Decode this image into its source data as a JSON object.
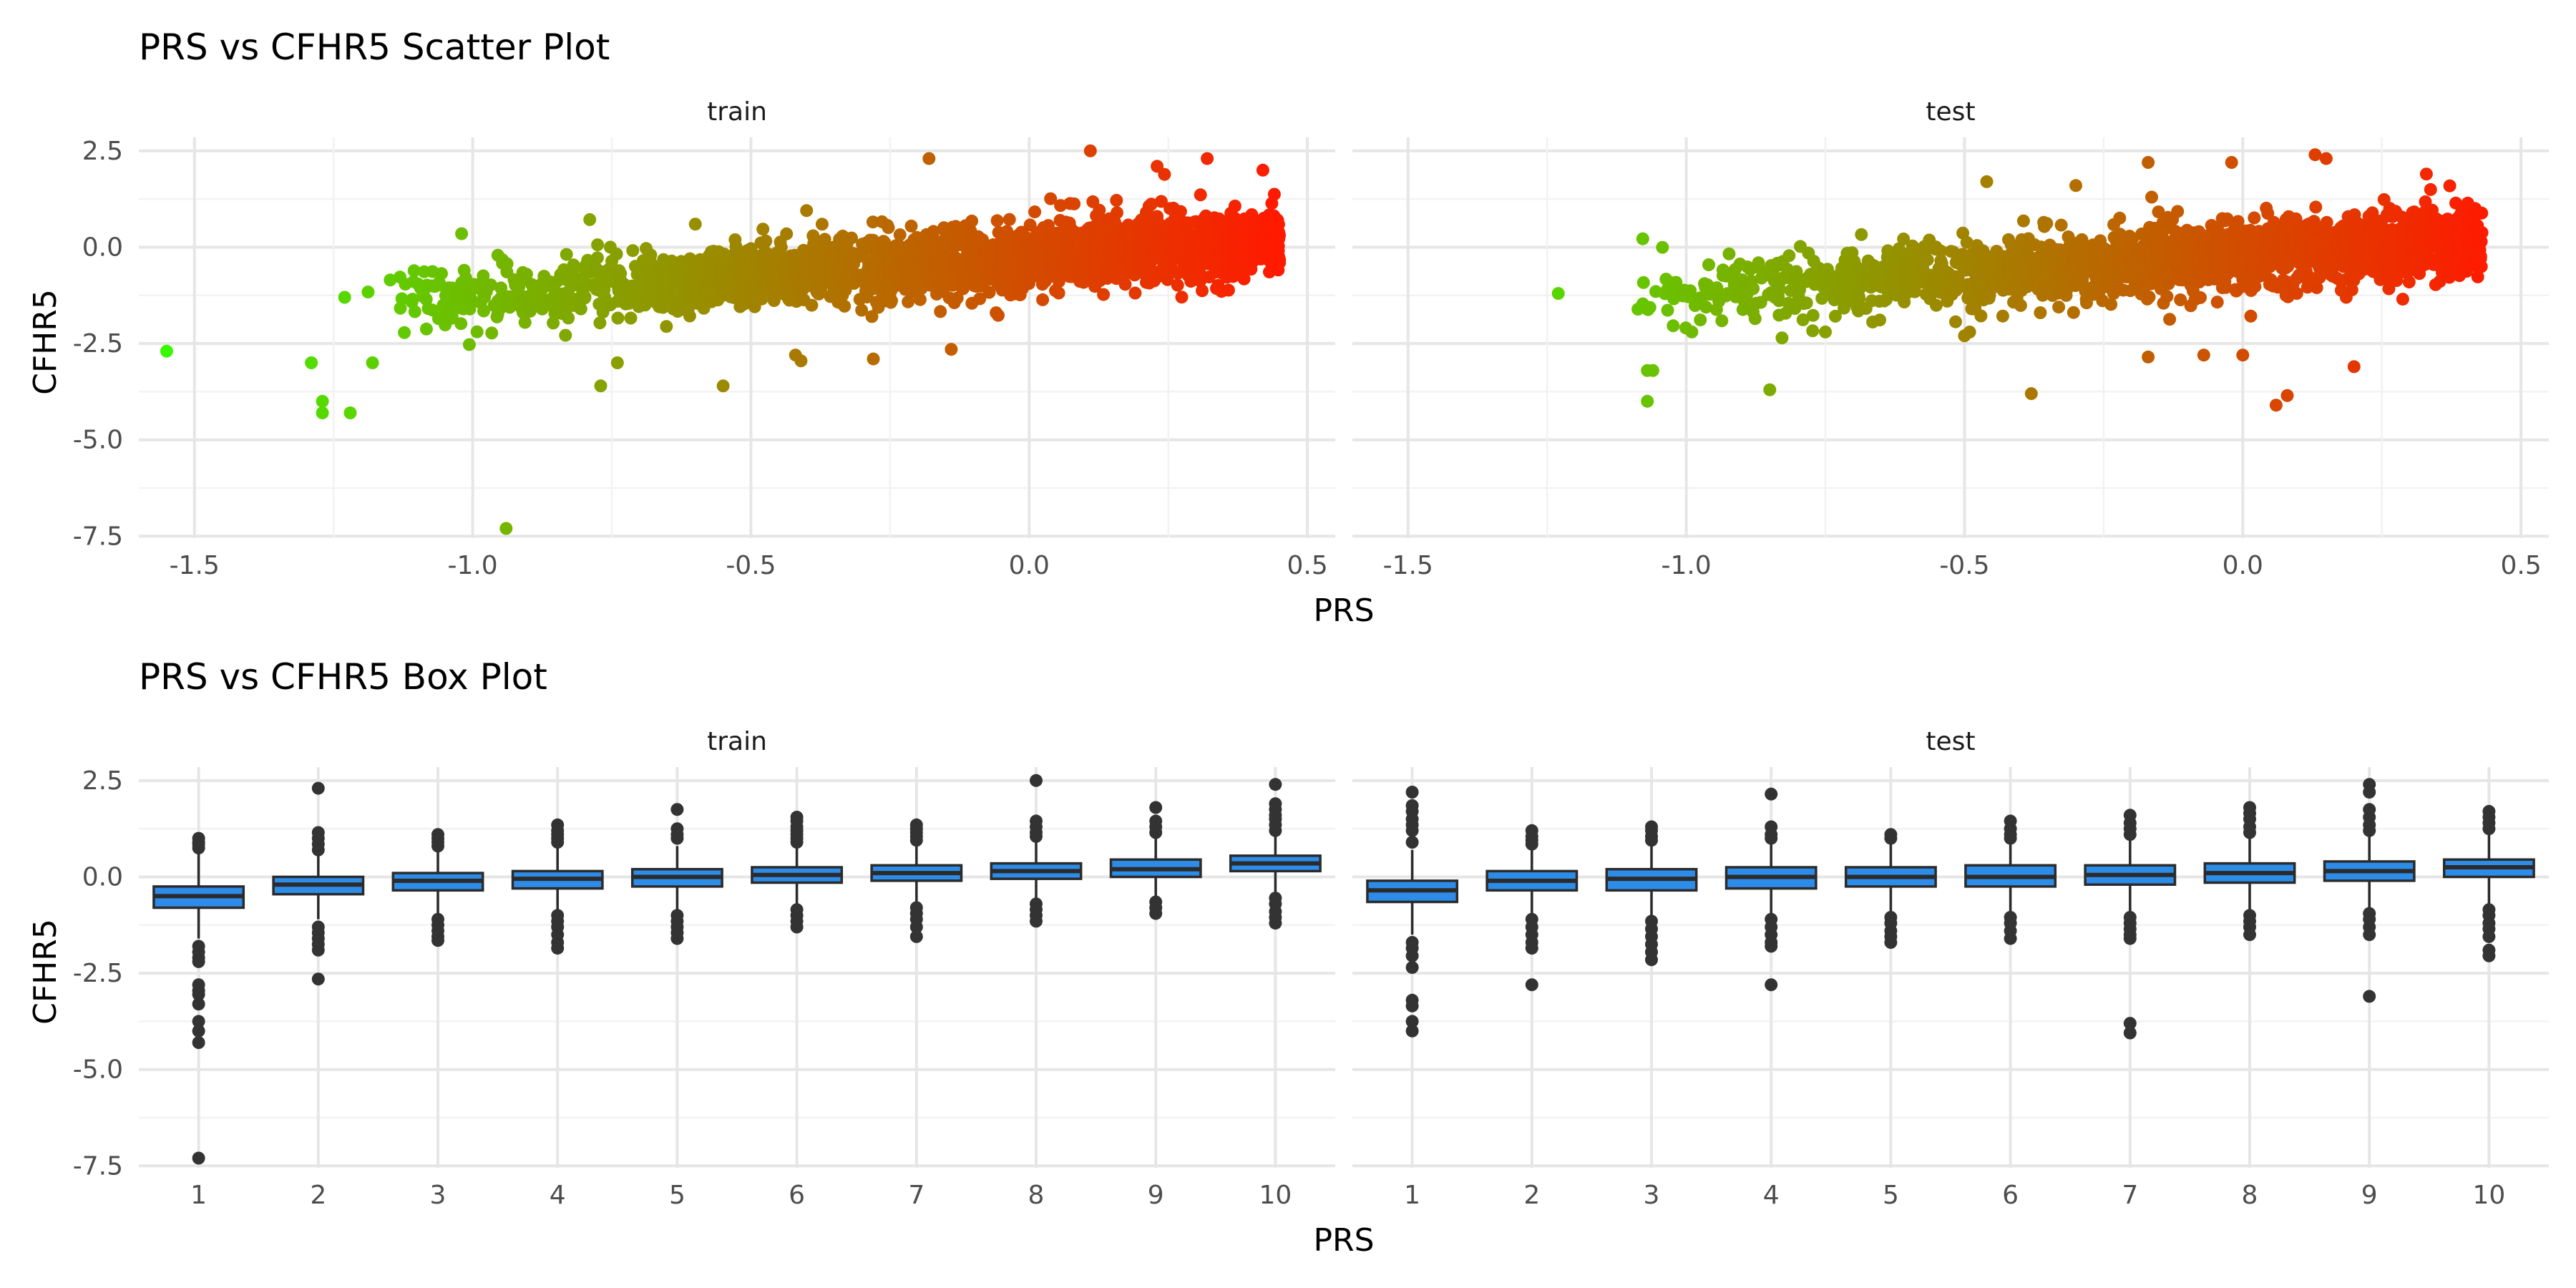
{
  "chart_data": [
    {
      "type": "scatter",
      "title": "PRS vs CFHR5 Scatter Plot",
      "xlabel": "PRS",
      "ylabel": "CFHR5",
      "xlim": [
        -1.6,
        0.55
      ],
      "ylim": [
        -7.55,
        2.85
      ],
      "x_ticks": [
        "-1.5",
        "-1.0",
        "-0.5",
        "0.0",
        "0.5"
      ],
      "y_ticks": [
        "2.5",
        "0.0",
        "-2.5",
        "-5.0",
        "-7.5"
      ],
      "color_scale": {
        "low": "#33ff00",
        "high": "#ff1a00",
        "mapped_to": "PRS"
      },
      "grid": true,
      "legend": "none",
      "panels": [
        {
          "name": "train",
          "trend": {
            "slope": 1.05,
            "intercept": -0.25,
            "x_range": [
              -1.2,
              0.45
            ],
            "noise_sd": 0.42,
            "n_points": 2200,
            "density": "left-skewed, dense between -0.5 and 0.45"
          },
          "outliers": [
            [
              -1.55,
              -2.7
            ],
            [
              -1.27,
              -4.0
            ],
            [
              -1.27,
              -4.3
            ],
            [
              -1.22,
              -4.3
            ],
            [
              -1.29,
              -3.0
            ],
            [
              -1.18,
              -3.0
            ],
            [
              -0.94,
              -7.3
            ],
            [
              -0.77,
              -3.6
            ],
            [
              -0.74,
              -3.0
            ],
            [
              -0.55,
              -3.6
            ],
            [
              -0.42,
              -2.8
            ],
            [
              -0.41,
              -2.95
            ],
            [
              -0.28,
              -2.9
            ],
            [
              -0.14,
              -2.65
            ],
            [
              -1.02,
              0.35
            ],
            [
              -0.4,
              0.95
            ],
            [
              -0.18,
              2.3
            ],
            [
              0.11,
              2.5
            ],
            [
              0.23,
              2.1
            ],
            [
              0.42,
              2.0
            ],
            [
              0.32,
              2.3
            ],
            [
              -0.6,
              0.6
            ],
            [
              -1.23,
              -1.3
            ]
          ]
        },
        {
          "name": "test",
          "trend": {
            "slope": 0.95,
            "intercept": -0.2,
            "x_range": [
              -1.12,
              0.43
            ],
            "noise_sd": 0.45,
            "n_points": 1800,
            "density": "left-skewed, dense between -0.4 and 0.4"
          },
          "outliers": [
            [
              -1.23,
              -1.2
            ],
            [
              -1.07,
              -3.2
            ],
            [
              -1.07,
              -4.0
            ],
            [
              -1.06,
              -3.2
            ],
            [
              -0.85,
              -3.7
            ],
            [
              -0.38,
              -3.8
            ],
            [
              0.06,
              -4.1
            ],
            [
              0.08,
              -3.85
            ],
            [
              0.2,
              -3.1
            ],
            [
              -0.07,
              -2.8
            ],
            [
              0.0,
              -2.8
            ],
            [
              -0.17,
              -2.85
            ],
            [
              -0.5,
              -2.3
            ],
            [
              -0.75,
              -2.2
            ],
            [
              -0.17,
              2.2
            ],
            [
              0.13,
              2.4
            ],
            [
              0.15,
              2.3
            ],
            [
              -0.02,
              2.2
            ],
            [
              -0.46,
              1.7
            ],
            [
              -0.99,
              -2.2
            ],
            [
              0.33,
              1.9
            ],
            [
              -0.3,
              1.6
            ]
          ]
        }
      ]
    },
    {
      "type": "box",
      "title": "PRS vs CFHR5 Box Plot",
      "xlabel": "PRS",
      "ylabel": "CFHR5",
      "categories": [
        "1",
        "2",
        "3",
        "4",
        "5",
        "6",
        "7",
        "8",
        "9",
        "10"
      ],
      "ylim": [
        -7.55,
        2.85
      ],
      "y_ticks": [
        "2.5",
        "0.0",
        "-2.5",
        "-5.0",
        "-7.5"
      ],
      "box_fill": "#2d8ce8",
      "box_line": "#2b2b2b",
      "grid": true,
      "legend": "none",
      "panels": [
        {
          "name": "train",
          "boxes": [
            {
              "q1": -0.8,
              "med": -0.5,
              "q3": -0.25,
              "lo": -1.6,
              "hi": 0.7,
              "outliers": [
                0.9,
                1.0,
                0.85,
                0.75,
                -1.8,
                -1.95,
                -2.1,
                -2.2,
                -2.8,
                -2.95,
                -3.05,
                -3.3,
                -3.75,
                -4.0,
                -4.3,
                -7.3
              ]
            },
            {
              "q1": -0.45,
              "med": -0.2,
              "q3": 0.0,
              "lo": -1.1,
              "hi": 0.6,
              "outliers": [
                0.7,
                0.85,
                1.0,
                1.15,
                2.3,
                -1.3,
                -1.45,
                -1.6,
                -1.75,
                -1.9,
                -2.65
              ]
            },
            {
              "q1": -0.35,
              "med": -0.1,
              "q3": 0.1,
              "lo": -1.0,
              "hi": 0.7,
              "outliers": [
                0.8,
                0.9,
                1.0,
                1.1,
                -1.1,
                -1.25,
                -1.4,
                -1.55,
                -1.65
              ]
            },
            {
              "q1": -0.3,
              "med": -0.05,
              "q3": 0.15,
              "lo": -0.95,
              "hi": 0.75,
              "outliers": [
                0.9,
                1.0,
                1.1,
                1.2,
                1.35,
                -1.0,
                -1.15,
                -1.3,
                -1.5,
                -1.7,
                -1.85
              ]
            },
            {
              "q1": -0.25,
              "med": 0.0,
              "q3": 0.2,
              "lo": -0.9,
              "hi": 0.8,
              "outliers": [
                1.0,
                1.1,
                1.25,
                1.75,
                -1.0,
                -1.15,
                -1.3,
                -1.45,
                -1.6
              ]
            },
            {
              "q1": -0.15,
              "med": 0.05,
              "q3": 0.25,
              "lo": -0.75,
              "hi": 0.8,
              "outliers": [
                0.9,
                1.0,
                1.1,
                1.2,
                1.3,
                1.45,
                1.55,
                -0.85,
                -1.0,
                -1.15,
                -1.3
              ]
            },
            {
              "q1": -0.1,
              "med": 0.1,
              "q3": 0.3,
              "lo": -0.7,
              "hi": 0.85,
              "outliers": [
                0.95,
                1.05,
                1.15,
                1.25,
                1.35,
                -0.8,
                -0.95,
                -1.1,
                -1.3,
                -1.55
              ]
            },
            {
              "q1": -0.05,
              "med": 0.15,
              "q3": 0.35,
              "lo": -0.6,
              "hi": 0.95,
              "outliers": [
                1.05,
                1.15,
                1.3,
                1.45,
                2.5,
                -0.7,
                -0.85,
                -1.0,
                -1.15
              ]
            },
            {
              "q1": 0.0,
              "med": 0.2,
              "q3": 0.45,
              "lo": -0.6,
              "hi": 1.0,
              "outliers": [
                1.15,
                1.3,
                1.45,
                1.8,
                -0.65,
                -0.8,
                -0.95
              ]
            },
            {
              "q1": 0.15,
              "med": 0.35,
              "q3": 0.55,
              "lo": -0.4,
              "hi": 1.1,
              "outliers": [
                1.2,
                1.35,
                1.5,
                1.6,
                1.75,
                1.9,
                2.4,
                -0.55,
                -0.7,
                -0.9,
                -1.05,
                -1.2
              ]
            }
          ]
        },
        {
          "name": "test",
          "boxes": [
            {
              "q1": -0.65,
              "med": -0.35,
              "q3": -0.1,
              "lo": -1.5,
              "hi": 0.7,
              "outliers": [
                0.9,
                1.2,
                1.35,
                1.5,
                1.7,
                1.85,
                2.2,
                -1.7,
                -1.85,
                -2.05,
                -2.35,
                -3.2,
                -3.35,
                -3.75,
                -4.0
              ]
            },
            {
              "q1": -0.35,
              "med": -0.1,
              "q3": 0.15,
              "lo": -1.0,
              "hi": 0.75,
              "outliers": [
                0.85,
                0.95,
                1.05,
                1.2,
                -1.1,
                -1.3,
                -1.5,
                -1.7,
                -1.85,
                -2.8
              ]
            },
            {
              "q1": -0.35,
              "med": -0.05,
              "q3": 0.2,
              "lo": -1.05,
              "hi": 0.85,
              "outliers": [
                0.95,
                1.05,
                1.2,
                1.3,
                -1.15,
                -1.35,
                -1.55,
                -1.75,
                -1.95,
                -2.15
              ]
            },
            {
              "q1": -0.3,
              "med": 0.0,
              "q3": 0.25,
              "lo": -1.0,
              "hi": 0.85,
              "outliers": [
                1.0,
                1.1,
                1.3,
                2.15,
                -1.1,
                -1.3,
                -1.5,
                -1.7,
                -1.8,
                -2.8
              ]
            },
            {
              "q1": -0.25,
              "med": 0.0,
              "q3": 0.25,
              "lo": -0.95,
              "hi": 0.9,
              "outliers": [
                1.0,
                1.1,
                -1.05,
                -1.2,
                -1.4,
                -1.55,
                -1.7
              ]
            },
            {
              "q1": -0.25,
              "med": 0.0,
              "q3": 0.3,
              "lo": -0.95,
              "hi": 0.9,
              "outliers": [
                1.0,
                1.1,
                1.25,
                1.45,
                -1.05,
                -1.2,
                -1.4,
                -1.6
              ]
            },
            {
              "q1": -0.2,
              "med": 0.05,
              "q3": 0.3,
              "lo": -0.95,
              "hi": 0.95,
              "outliers": [
                1.1,
                1.25,
                1.4,
                1.6,
                -1.05,
                -1.2,
                -1.35,
                -1.5,
                -1.6,
                -3.8,
                -4.05
              ]
            },
            {
              "q1": -0.15,
              "med": 0.1,
              "q3": 0.35,
              "lo": -0.9,
              "hi": 1.0,
              "outliers": [
                1.15,
                1.3,
                1.5,
                1.65,
                1.8,
                -1.0,
                -1.15,
                -1.3,
                -1.5
              ]
            },
            {
              "q1": -0.1,
              "med": 0.15,
              "q3": 0.4,
              "lo": -0.85,
              "hi": 1.05,
              "outliers": [
                1.2,
                1.35,
                1.55,
                1.75,
                2.2,
                2.4,
                -0.95,
                -1.1,
                -1.3,
                -1.5,
                -3.1
              ]
            },
            {
              "q1": 0.0,
              "med": 0.25,
              "q3": 0.45,
              "lo": -0.7,
              "hi": 1.1,
              "outliers": [
                1.25,
                1.4,
                1.55,
                1.7,
                -0.85,
                -1.0,
                -1.2,
                -1.35,
                -1.55,
                -1.9,
                -2.05
              ]
            }
          ]
        }
      ]
    }
  ]
}
